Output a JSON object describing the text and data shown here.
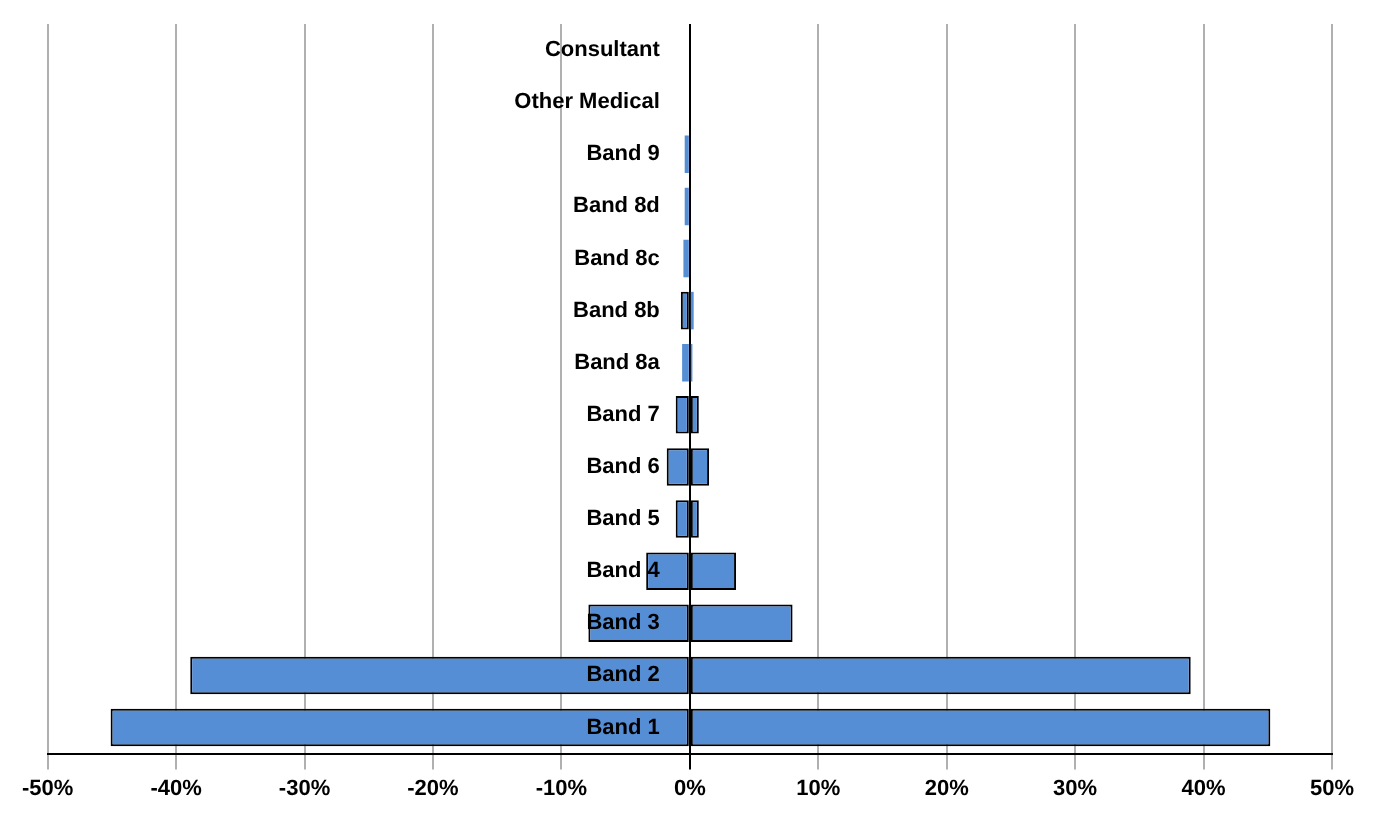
{
  "chart_data": {
    "type": "bar",
    "orientation": "horizontal",
    "stacked": true,
    "categories": [
      "Consultant",
      "Other Medical",
      "Band 9",
      "Band 8d",
      "Band 8c",
      "Band 8b",
      "Band 8a",
      "Band 7",
      "Band 6",
      "Band 5",
      "Band 4",
      "Band 3",
      "Band 2",
      "Band 1"
    ],
    "series": [
      {
        "color": "#558ed5",
        "values": [
          0,
          0,
          -0.4,
          -0.4,
          -0.5,
          -0.7,
          -0.6,
          -1.1,
          -1.8,
          -1.1,
          -3.4,
          -7.9,
          -38.9,
          -45.1
        ]
      },
      {
        "color": "#558ed5",
        "values": [
          0,
          0,
          null,
          null,
          null,
          0.3,
          0.2,
          0.7,
          1.5,
          0.7,
          3.6,
          8.0,
          39.0,
          45.2
        ]
      }
    ],
    "xlim": [
      -50,
      50
    ],
    "xticks": [
      {
        "value": -50,
        "label": "-50%"
      },
      {
        "value": -40,
        "label": "-40%"
      },
      {
        "value": -30,
        "label": "-30%"
      },
      {
        "value": -20,
        "label": "-20%"
      },
      {
        "value": -10,
        "label": "-10%"
      },
      {
        "value": 0,
        "label": "0%"
      },
      {
        "value": 10,
        "label": "10%"
      },
      {
        "value": 20,
        "label": "20%"
      },
      {
        "value": 30,
        "label": "30%"
      },
      {
        "value": 40,
        "label": "40%"
      },
      {
        "value": 50,
        "label": "50%"
      }
    ],
    "grid": "x",
    "legend": false
  }
}
